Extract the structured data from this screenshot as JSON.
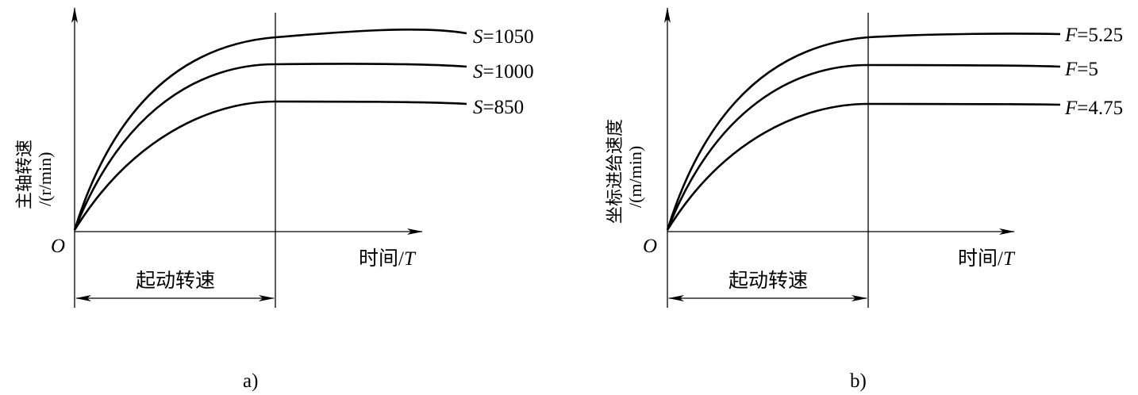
{
  "panels": [
    {
      "caption": "a)",
      "ylabel_line1": "主轴转速",
      "ylabel_line2": "/(r/min)",
      "origin": "O",
      "xlabel_prefix": "时间/",
      "xlabel_var": "T",
      "interval_label": "起动转速",
      "curve_var": "S",
      "curves": [
        {
          "value": "=1050"
        },
        {
          "value": "=1000"
        },
        {
          "value": "=850"
        }
      ]
    },
    {
      "caption": "b)",
      "ylabel_line1": "坐标进给速度",
      "ylabel_line2": "/(m/min)",
      "origin": "O",
      "xlabel_prefix": "时间/",
      "xlabel_var": "T",
      "interval_label": "起动转速",
      "curve_var": "F",
      "curves": [
        {
          "value": "=5.25"
        },
        {
          "value": "=5"
        },
        {
          "value": "=4.75"
        }
      ]
    }
  ]
}
